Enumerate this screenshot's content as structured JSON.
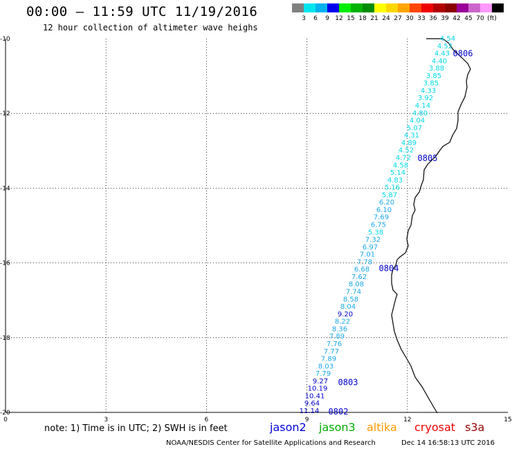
{
  "title": "00:00 – 11:59 UTC 11/19/2016",
  "subtitle": "12 hour collection of altimeter wave heighs",
  "scale": {
    "colors": [
      "#808080",
      "#00e5ee",
      "#00b2ee",
      "#0000ee",
      "#00ee00",
      "#00b200",
      "#008b00",
      "#ffff00",
      "#ffd700",
      "#ffa500",
      "#ff4500",
      "#ee0000",
      "#b20000",
      "#8b0000",
      "#9a0099",
      "#cc66cc",
      "#ff99ff",
      "#000000"
    ],
    "labels": [
      "3",
      "6",
      "9",
      "12",
      "15",
      "18",
      "21",
      "24",
      "27",
      "30",
      "33",
      "36",
      "39",
      "42",
      "45",
      "70",
      "(ft)"
    ]
  },
  "axes": {
    "x_ticks": [
      "0",
      "3",
      "6",
      "9",
      "12",
      "15"
    ],
    "y_ticks": [
      "-10",
      "-12",
      "-14",
      "-16",
      "-18",
      "-20"
    ]
  },
  "track_times": [
    {
      "label": "0806",
      "lat": -10.4
    },
    {
      "label": "0805",
      "lat": -13.2
    },
    {
      "label": "0804",
      "lat": -16.15
    },
    {
      "label": "0803",
      "lat": -19.2
    },
    {
      "label": "0802",
      "lat": -19.98
    }
  ],
  "wave_heights": [
    {
      "v": "4.54",
      "c": "cyan"
    },
    {
      "v": "4.52",
      "c": "cyan"
    },
    {
      "v": "4.43",
      "c": "cyan"
    },
    {
      "v": "4.40",
      "c": "cyan"
    },
    {
      "v": "3.88",
      "c": "cyan"
    },
    {
      "v": "3.85",
      "c": "cyan"
    },
    {
      "v": "3.85",
      "c": "cyan"
    },
    {
      "v": "4.33",
      "c": "cyan"
    },
    {
      "v": "3.92",
      "c": "cyan"
    },
    {
      "v": "4.14",
      "c": "cyan"
    },
    {
      "v": "4.80",
      "c": "cyan"
    },
    {
      "v": "4.04",
      "c": "cyan"
    },
    {
      "v": "5.07",
      "c": "cyan"
    },
    {
      "v": "4.31",
      "c": "cyan"
    },
    {
      "v": "4.89",
      "c": "cyan"
    },
    {
      "v": "4.52",
      "c": "cyan"
    },
    {
      "v": "4.72",
      "c": "cyan"
    },
    {
      "v": "4.58",
      "c": "cyan"
    },
    {
      "v": "5.14",
      "c": "cyan"
    },
    {
      "v": "4.83",
      "c": "cyan"
    },
    {
      "v": "5.16",
      "c": "cyan"
    },
    {
      "v": "5.87",
      "c": "cyan"
    },
    {
      "v": "6.20",
      "c": "sky"
    },
    {
      "v": "6.10",
      "c": "sky"
    },
    {
      "v": "7.69",
      "c": "sky"
    },
    {
      "v": "6.75",
      "c": "sky"
    },
    {
      "v": "5.38",
      "c": "cyan"
    },
    {
      "v": "7.32",
      "c": "sky"
    },
    {
      "v": "6.97",
      "c": "sky"
    },
    {
      "v": "7.01",
      "c": "sky"
    },
    {
      "v": "7.78",
      "c": "sky"
    },
    {
      "v": "6.68",
      "c": "sky"
    },
    {
      "v": "7.62",
      "c": "sky"
    },
    {
      "v": "8.08",
      "c": "sky"
    },
    {
      "v": "7.74",
      "c": "sky"
    },
    {
      "v": "8.58",
      "c": "sky"
    },
    {
      "v": "8.04",
      "c": "sky"
    },
    {
      "v": "9.20",
      "c": "blue"
    },
    {
      "v": "8.22",
      "c": "sky"
    },
    {
      "v": "8.36",
      "c": "sky"
    },
    {
      "v": "7.89",
      "c": "sky"
    },
    {
      "v": "7.76",
      "c": "sky"
    },
    {
      "v": "7.77",
      "c": "sky"
    },
    {
      "v": "7.89",
      "c": "sky"
    },
    {
      "v": "8.03",
      "c": "sky"
    },
    {
      "v": "7.79",
      "c": "sky"
    },
    {
      "v": "9.27",
      "c": "blue"
    },
    {
      "v": "10.19",
      "c": "blue"
    },
    {
      "v": "10.41",
      "c": "blue"
    },
    {
      "v": "9.64",
      "c": "blue"
    },
    {
      "v": "11.14",
      "c": "blue"
    }
  ],
  "note": "note: 1) Time is in UTC; 2) SWH is in feet",
  "legend": [
    {
      "name": "jason2",
      "color": "#0000dd"
    },
    {
      "name": "jason3",
      "color": "#00aa00"
    },
    {
      "name": "altika",
      "color": "#ff9900"
    },
    {
      "name": "cryosat",
      "color": "#ee0000"
    },
    {
      "name": "s3a",
      "color": "#990000"
    }
  ],
  "credit": "NOAA/NESDIS Center for Satellite Applications and Research",
  "stamp": "Dec 14 16:58:13 UTC 2016"
}
